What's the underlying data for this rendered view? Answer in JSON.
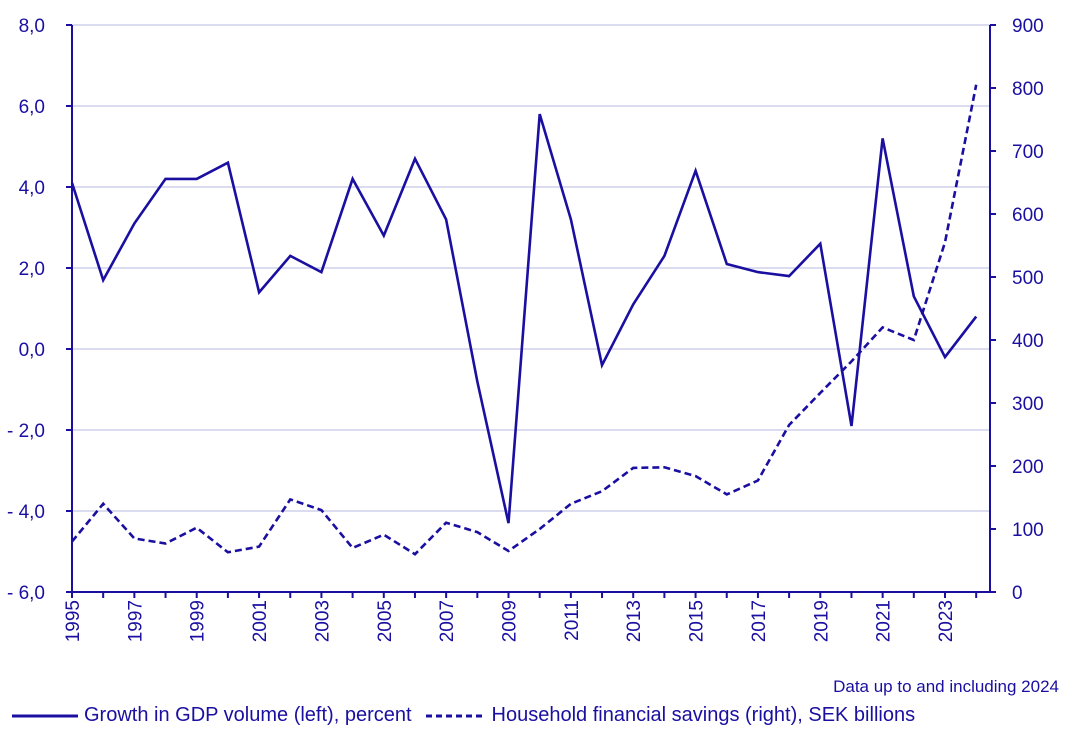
{
  "chart_data": {
    "type": "line",
    "x": [
      1995,
      1996,
      1997,
      1998,
      1999,
      2000,
      2001,
      2002,
      2003,
      2004,
      2005,
      2006,
      2007,
      2008,
      2009,
      2010,
      2011,
      2012,
      2013,
      2014,
      2015,
      2016,
      2017,
      2018,
      2019,
      2020,
      2021,
      2022,
      2023,
      2024
    ],
    "x_tick_labels": [
      "1995",
      "1997",
      "1999",
      "2001",
      "2003",
      "2005",
      "2007",
      "2009",
      "2011",
      "2013",
      "2015",
      "2017",
      "2019",
      "2021",
      "2023"
    ],
    "left_axis": {
      "ylim": [
        -6,
        8
      ],
      "tick_labels": [
        "- 6,0",
        "- 4,0",
        "- 2,0",
        "0,0",
        "2,0",
        "4,0",
        "6,0",
        "8,0"
      ]
    },
    "right_axis": {
      "ylim": [
        0,
        900
      ],
      "tick_labels": [
        "0",
        "100",
        "200",
        "300",
        "400",
        "500",
        "600",
        "700",
        "800",
        "900"
      ]
    },
    "series": [
      {
        "name": "Growth in GDP volume (left), percent",
        "axis": "left",
        "style": "solid",
        "values": [
          4.1,
          1.7,
          3.1,
          4.2,
          4.2,
          4.6,
          1.4,
          2.3,
          1.9,
          4.2,
          2.8,
          4.7,
          3.2,
          -0.8,
          -4.3,
          5.8,
          3.2,
          -0.4,
          1.1,
          2.3,
          4.4,
          2.1,
          1.9,
          1.8,
          2.6,
          -1.9,
          5.2,
          1.3,
          -0.2,
          0.8
        ]
      },
      {
        "name": "Household financial savings (right), SEK billions",
        "axis": "right",
        "style": "dashed",
        "values": [
          80,
          140,
          85,
          77,
          102,
          63,
          72,
          147,
          130,
          70,
          91,
          60,
          110,
          95,
          65,
          100,
          140,
          160,
          197,
          198,
          184,
          155,
          177,
          265,
          316,
          366,
          420,
          400,
          555,
          805
        ]
      }
    ],
    "grid": true
  },
  "note": "Data up to and including 2024",
  "legend": {
    "solid_label": "Growth in GDP volume (left), percent",
    "dashed_label": "Household financial savings (right), SEK billions"
  },
  "colors": {
    "line": "#1a0fa0",
    "grid": "#c8c8e6",
    "text": "#1a0fa0"
  }
}
